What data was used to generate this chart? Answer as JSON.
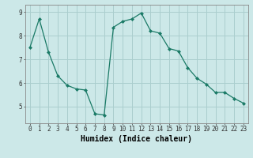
{
  "x": [
    0,
    1,
    2,
    3,
    4,
    5,
    6,
    7,
    8,
    9,
    10,
    11,
    12,
    13,
    14,
    15,
    16,
    17,
    18,
    19,
    20,
    21,
    22,
    23
  ],
  "y": [
    7.5,
    8.7,
    7.3,
    6.3,
    5.9,
    5.75,
    5.7,
    4.7,
    4.65,
    8.35,
    8.6,
    8.7,
    8.95,
    8.2,
    8.1,
    7.45,
    7.35,
    6.65,
    6.2,
    5.95,
    5.6,
    5.6,
    5.35,
    5.15
  ],
  "line_color": "#1a7a66",
  "marker": "D",
  "marker_size": 2.0,
  "bg_color": "#cce8e8",
  "grid_color": "#aacece",
  "xlabel": "Humidex (Indice chaleur)",
  "xlim": [
    -0.5,
    23.5
  ],
  "ylim": [
    4.3,
    9.3
  ],
  "yticks": [
    5,
    6,
    7,
    8,
    9
  ],
  "xtick_labels": [
    "0",
    "1",
    "2",
    "3",
    "4",
    "5",
    "6",
    "7",
    "8",
    "9",
    "10",
    "11",
    "12",
    "13",
    "14",
    "15",
    "16",
    "17",
    "18",
    "19",
    "20",
    "21",
    "22",
    "23"
  ],
  "tick_fontsize": 5.5,
  "xlabel_fontsize": 7.0,
  "font_family": "monospace"
}
